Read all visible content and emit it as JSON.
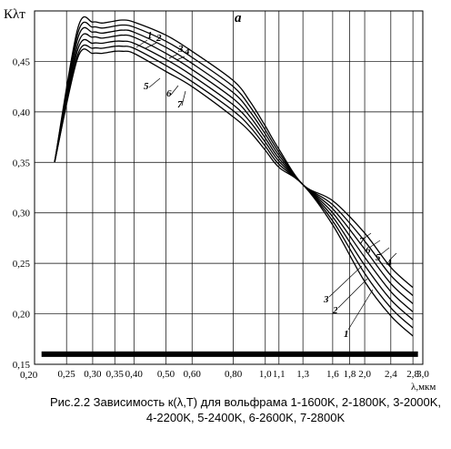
{
  "caption": "Рис.2.2 Зависимость к(λ,T) для вольфрама 1-1600K, 2-1800K, 3-2000K, 4-2200K, 5-2400K, 6-2600K, 7-2800K",
  "chart_data": {
    "type": "line",
    "title": "a",
    "ylabel": "Кλт",
    "xlabel": "λ,мкм",
    "x_scale": "log",
    "grid": true,
    "xlim": [
      0.2,
      3.0
    ],
    "ylim": [
      0.15,
      0.5
    ],
    "x_ticks": [
      0.25,
      0.3,
      0.35,
      0.4,
      0.5,
      0.6,
      0.8,
      1.0,
      1.1,
      1.3,
      1.6,
      1.8,
      2.0,
      2.4,
      2.8,
      3.0
    ],
    "x_tick_labels": [
      "0,25",
      "0,30",
      "0,35",
      "0,40",
      "0,50",
      "0,60",
      "0,80",
      "1,0",
      "1,1",
      "1,3",
      "1,6",
      "1,8",
      "2,0",
      "2,4",
      "2,8",
      "3,0"
    ],
    "x_axis_start_label": "0,20",
    "y_ticks": [
      0.15,
      0.2,
      0.25,
      0.3,
      0.35,
      0.4,
      0.45
    ],
    "y_tick_labels": [
      "0,15",
      "0,20",
      "0,25",
      "0,30",
      "0,35",
      "0,40",
      "0,45"
    ],
    "x": [
      0.23,
      0.27,
      0.3,
      0.32,
      0.35,
      0.37,
      0.4,
      0.5,
      0.6,
      0.8,
      0.9,
      1.0,
      1.1,
      1.3,
      1.6,
      2.0,
      2.4,
      2.8
    ],
    "series": [
      {
        "name": "1",
        "values": [
          0.35,
          0.453,
          0.458,
          0.458,
          0.46,
          0.46,
          0.458,
          0.44,
          0.425,
          0.395,
          0.38,
          0.362,
          0.345,
          0.328,
          0.288,
          0.232,
          0.198,
          0.178
        ]
      },
      {
        "name": "2",
        "values": [
          0.35,
          0.456,
          0.463,
          0.463,
          0.465,
          0.465,
          0.463,
          0.446,
          0.43,
          0.401,
          0.385,
          0.366,
          0.348,
          0.328,
          0.292,
          0.24,
          0.206,
          0.186
        ]
      },
      {
        "name": "3",
        "values": [
          0.35,
          0.461,
          0.468,
          0.468,
          0.47,
          0.47,
          0.468,
          0.452,
          0.436,
          0.407,
          0.39,
          0.37,
          0.351,
          0.328,
          0.296,
          0.248,
          0.214,
          0.194
        ]
      },
      {
        "name": "4",
        "values": [
          0.35,
          0.466,
          0.474,
          0.473,
          0.475,
          0.476,
          0.474,
          0.458,
          0.442,
          0.413,
          0.395,
          0.374,
          0.354,
          0.328,
          0.3,
          0.256,
          0.222,
          0.202
        ]
      },
      {
        "name": "5",
        "values": [
          0.35,
          0.472,
          0.479,
          0.478,
          0.48,
          0.481,
          0.479,
          0.464,
          0.448,
          0.419,
          0.4,
          0.378,
          0.357,
          0.328,
          0.304,
          0.264,
          0.23,
          0.21
        ]
      },
      {
        "name": "6",
        "values": [
          0.35,
          0.477,
          0.484,
          0.483,
          0.485,
          0.486,
          0.484,
          0.47,
          0.454,
          0.425,
          0.405,
          0.382,
          0.36,
          0.328,
          0.308,
          0.272,
          0.238,
          0.218
        ]
      },
      {
        "name": "7",
        "values": [
          0.35,
          0.482,
          0.489,
          0.488,
          0.49,
          0.491,
          0.489,
          0.476,
          0.46,
          0.431,
          0.41,
          0.386,
          0.363,
          0.328,
          0.312,
          0.28,
          0.246,
          0.226
        ]
      }
    ],
    "reference_line": {
      "y": 0.16,
      "x_from": 0.21,
      "x_to": 2.9
    }
  },
  "series_label_positions": [
    "1",
    "2",
    "3",
    "4",
    "5",
    "6",
    "7"
  ]
}
